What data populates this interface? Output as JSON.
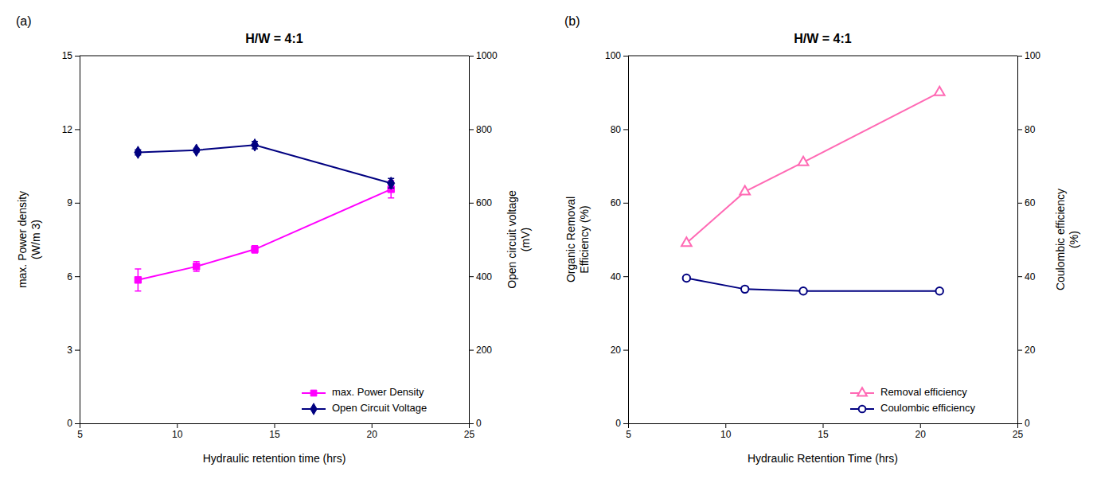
{
  "chart_data": [
    {
      "type": "line",
      "title": "H/W = 4:1",
      "annotations": [
        "(a)"
      ],
      "x_label": "Hydraulic retention time (hrs)",
      "y_label": "max. Power density\n(W/m 3)",
      "y2_label": "Open circuit voltage\n(mV)",
      "x": [
        8,
        11,
        14,
        21
      ],
      "series": [
        {
          "name": "max. Power Density",
          "color": "#FF00FF",
          "marker": "square",
          "line_style": "solid",
          "values": [
            5.85,
            6.4,
            7.1,
            9.55
          ],
          "error": [
            0.45,
            0.2,
            0.15,
            0.35
          ]
        },
        {
          "name": "Open Circuit Voltage",
          "color": "#000080",
          "marker": "diamond",
          "line_style": "solid",
          "axis": "y2",
          "values": [
            737,
            743,
            757,
            653
          ],
          "error": [
            7,
            5,
            10,
            13
          ]
        }
      ],
      "xlim": [
        5,
        25
      ],
      "xticks": [
        5,
        10,
        15,
        20,
        25
      ],
      "ylim": [
        0,
        15
      ],
      "yticks": [
        0,
        3,
        6,
        9,
        12,
        15
      ],
      "y2lim": [
        0,
        1000
      ],
      "y2ticks": [
        0,
        200,
        400,
        600,
        800,
        1000
      ],
      "grid": false,
      "legend": "lower right"
    },
    {
      "type": "line",
      "title": "H/W = 4:1",
      "annotations": [
        "(b)"
      ],
      "x_label": "Hydraulic Retention Time (hrs)",
      "y_label": "Organic Removal\nEfficiency (%)",
      "y2_label": "Coulombic efficiency\n(%)",
      "x": [
        8,
        11,
        14,
        21
      ],
      "series": [
        {
          "name": "Removal efficiency",
          "color": "#FF69B4",
          "marker": "triangle-open",
          "line_style": "solid",
          "values": [
            49,
            63,
            71,
            90
          ]
        },
        {
          "name": "Coulombic efficiency",
          "color": "#000080",
          "marker": "circle-open",
          "line_style": "solid",
          "axis": "y2",
          "values": [
            39.5,
            36.5,
            36.0,
            36.0
          ]
        }
      ],
      "xlim": [
        5,
        25
      ],
      "xticks": [
        5,
        10,
        15,
        20,
        25
      ],
      "ylim": [
        0,
        100
      ],
      "yticks": [
        0,
        20,
        40,
        60,
        80,
        100
      ],
      "y2lim": [
        0,
        100
      ],
      "y2ticks": [
        0,
        20,
        40,
        60,
        80,
        100
      ],
      "grid": false,
      "legend": "lower right"
    }
  ]
}
